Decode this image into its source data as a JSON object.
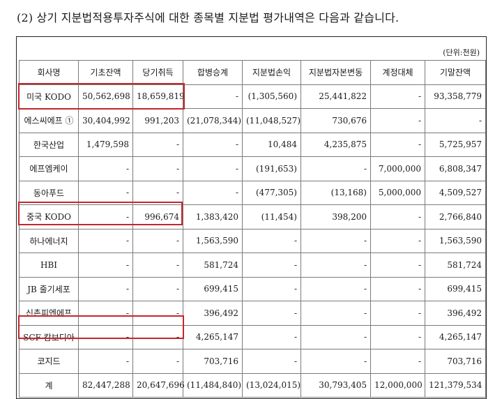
{
  "heading": "(2) 상기 지분법적용투자주식에 대한 종목별 지분법 평가내역은 다음과 같습니다.",
  "unit": "(단위:천원)",
  "columns": [
    "회사명",
    "기초잔액",
    "당기취득",
    "합병승계",
    "지분법손익",
    "지분법자본변동",
    "계정대체",
    "기말잔액"
  ],
  "rows": [
    [
      "미국 KODO",
      "50,562,698",
      "18,659,819",
      "-",
      "(1,305,560)",
      "25,441,822",
      "-",
      "93,358,779"
    ],
    [
      "에스씨에프 ①",
      "30,404,992",
      "991,203",
      "(21,078,344)",
      "(11,048,527)",
      "730,676",
      "-",
      "-"
    ],
    [
      "한국산업",
      "1,479,598",
      "-",
      "-",
      "10,484",
      "4,235,875",
      "-",
      "5,725,957"
    ],
    [
      "에프엠케이",
      "-",
      "-",
      "-",
      "(191,653)",
      "-",
      "7,000,000",
      "6,808,347"
    ],
    [
      "동아푸드",
      "-",
      "-",
      "-",
      "(477,305)",
      "(13,168)",
      "5,000,000",
      "4,509,527"
    ],
    [
      "중국 KODO",
      "-",
      "996,674",
      "1,383,420",
      "(11,454)",
      "398,200",
      "-",
      "2,766,840"
    ],
    [
      "하나에너지",
      "-",
      "-",
      "1,563,590",
      "-",
      "-",
      "-",
      "1,563,590"
    ],
    [
      "HBI",
      "-",
      "-",
      "581,724",
      "-",
      "-",
      "-",
      "581,724"
    ],
    [
      "JB 줄기세포",
      "-",
      "-",
      "699,415",
      "-",
      "-",
      "-",
      "699,415"
    ],
    [
      "신촌피엔에프",
      "-",
      "-",
      "396,492",
      "-",
      "-",
      "-",
      "396,492"
    ],
    [
      "SCF 캄보디아",
      "-",
      "-",
      "4,265,147",
      "-",
      "-",
      "-",
      "4,265,147"
    ],
    [
      "코지드",
      "-",
      "-",
      "703,716",
      "-",
      "-",
      "-",
      "703,716"
    ],
    [
      "계",
      "82,447,288",
      "20,647,696",
      "(11,484,840)",
      "(13,024,015)",
      "30,793,405",
      "12,000,000",
      "121,379,534"
    ]
  ],
  "highlight_color": "#c2272d"
}
